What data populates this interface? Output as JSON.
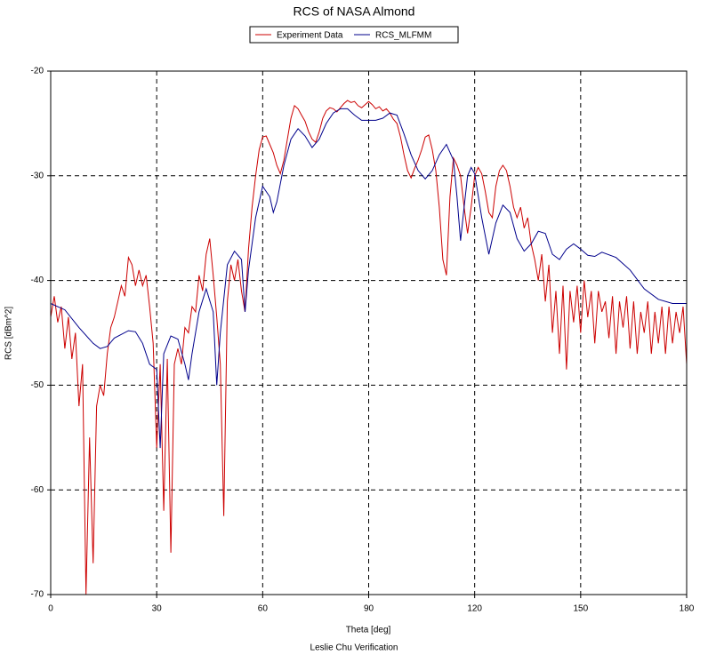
{
  "chart_data": {
    "type": "line",
    "title": "RCS of NASA Almond",
    "xlabel": "Theta [deg]",
    "ylabel": "RCS [dBm^2]",
    "footer": "Leslie Chu Verification",
    "xlim": [
      0,
      180
    ],
    "xticks": [
      0,
      30,
      60,
      90,
      120,
      150,
      180
    ],
    "ylim": [
      -70,
      -20
    ],
    "yticks": [
      -70,
      -60,
      -50,
      -40,
      -30,
      -20
    ],
    "grid": true,
    "legend": "top",
    "series": [
      {
        "name": "Experiment Data",
        "color": "#cc0000",
        "x": [
          0,
          1,
          2,
          3,
          4,
          5,
          6,
          7,
          8,
          9,
          10,
          11,
          12,
          13,
          14,
          15,
          16,
          17,
          18,
          19,
          20,
          21,
          22,
          23,
          24,
          25,
          26,
          27,
          28,
          29,
          30,
          31,
          32,
          33,
          34,
          35,
          36,
          37,
          38,
          39,
          40,
          41,
          42,
          43,
          44,
          45,
          46,
          47,
          48,
          49,
          50,
          51,
          52,
          53,
          54,
          55,
          56,
          57,
          58,
          59,
          60,
          61,
          62,
          63,
          64,
          65,
          66,
          67,
          68,
          69,
          70,
          71,
          72,
          73,
          74,
          75,
          76,
          77,
          78,
          79,
          80,
          81,
          82,
          83,
          84,
          85,
          86,
          87,
          88,
          89,
          90,
          91,
          92,
          93,
          94,
          95,
          96,
          97,
          98,
          99,
          100,
          101,
          102,
          103,
          104,
          105,
          106,
          107,
          108,
          109,
          110,
          111,
          112,
          113,
          114,
          115,
          116,
          117,
          118,
          119,
          120,
          121,
          122,
          123,
          124,
          125,
          126,
          127,
          128,
          129,
          130,
          131,
          132,
          133,
          134,
          135,
          136,
          137,
          138,
          139,
          140,
          141,
          142,
          143,
          144,
          145,
          146,
          147,
          148,
          149,
          150,
          151,
          152,
          153,
          154,
          155,
          156,
          157,
          158,
          159,
          160,
          161,
          162,
          163,
          164,
          165,
          166,
          167,
          168,
          169,
          170,
          171,
          172,
          173,
          174,
          175,
          176,
          177,
          178,
          179,
          180
        ],
        "values": [
          -43.5,
          -41.5,
          -44,
          -42.5,
          -46.5,
          -43.5,
          -47.5,
          -45,
          -52,
          -48,
          -70,
          -55,
          -67,
          -52,
          -50,
          -51,
          -47,
          -44.5,
          -43.5,
          -42,
          -40.5,
          -41.5,
          -37.8,
          -38.5,
          -40.5,
          -39,
          -40.5,
          -39.5,
          -42.5,
          -46,
          -56,
          -48,
          -62,
          -47.5,
          -66,
          -48,
          -46.5,
          -48,
          -44.5,
          -45,
          -42.5,
          -43,
          -39.5,
          -41,
          -37.5,
          -36,
          -39.5,
          -43.5,
          -48,
          -62.5,
          -42,
          -38.5,
          -40,
          -38,
          -41,
          -43,
          -37,
          -33,
          -30,
          -27.5,
          -26.3,
          -26.2,
          -27,
          -27.8,
          -29,
          -29.8,
          -28.5,
          -26.5,
          -24.5,
          -23.3,
          -23.6,
          -24.2,
          -24.8,
          -25.8,
          -26.5,
          -26.8,
          -25.8,
          -24.5,
          -23.8,
          -23.5,
          -23.6,
          -23.9,
          -23.5,
          -23.1,
          -22.8,
          -23,
          -22.9,
          -23.3,
          -23.5,
          -23.2,
          -22.9,
          -23.2,
          -23.6,
          -23.4,
          -23.8,
          -23.6,
          -24,
          -24.6,
          -25,
          -26.3,
          -28,
          -29.5,
          -30.2,
          -29.3,
          -28.5,
          -27.5,
          -26.3,
          -26.1,
          -27.5,
          -29.5,
          -33,
          -38,
          -39.5,
          -32,
          -28.3,
          -29,
          -30,
          -33,
          -35.5,
          -33,
          -30,
          -29.2,
          -29.8,
          -31.5,
          -33.5,
          -34,
          -31,
          -29.5,
          -29,
          -29.5,
          -31,
          -33,
          -34,
          -33,
          -35,
          -34,
          -36.5,
          -38,
          -40,
          -37.5,
          -42,
          -38.5,
          -45,
          -41,
          -47,
          -40.5,
          -48.5,
          -41,
          -44,
          -40.5,
          -45,
          -40,
          -43.5,
          -41,
          -46,
          -41,
          -43,
          -42,
          -45.5,
          -41.5,
          -47,
          -42,
          -44.5,
          -41.5,
          -46.5,
          -42,
          -47,
          -43,
          -45,
          -42,
          -47,
          -43,
          -46,
          -42.5,
          -47,
          -42.5,
          -46,
          -43,
          -45,
          -42.5,
          -48
        ]
      },
      {
        "name": "RCS_MLFMM",
        "color": "#00008b",
        "x": [
          0,
          4,
          8,
          12,
          14,
          16,
          18,
          22,
          24,
          26,
          28,
          30,
          31,
          32,
          34,
          36,
          38,
          39,
          40,
          42,
          44,
          46,
          47,
          48,
          50,
          52,
          54,
          55,
          56,
          58,
          60,
          62,
          63,
          64,
          66,
          68,
          70,
          72,
          74,
          76,
          78,
          80,
          82,
          84,
          86,
          88,
          92,
          94,
          96,
          98,
          100,
          102,
          104,
          106,
          108,
          110,
          112,
          114,
          115,
          116,
          117,
          118,
          119,
          120,
          122,
          124,
          126,
          128,
          130,
          132,
          134,
          136,
          138,
          140,
          142,
          144,
          146,
          148,
          150,
          152,
          154,
          156,
          160,
          164,
          168,
          172,
          176,
          180
        ],
        "values": [
          -42.2,
          -42.8,
          -44.5,
          -46,
          -46.5,
          -46.3,
          -45.5,
          -44.8,
          -44.9,
          -46,
          -48,
          -48.5,
          -56,
          -47,
          -45.3,
          -45.6,
          -48,
          -49.5,
          -47,
          -43,
          -40.8,
          -43,
          -50,
          -45,
          -38.5,
          -37.2,
          -38,
          -43,
          -39,
          -34,
          -31,
          -32,
          -33.5,
          -32.5,
          -29,
          -26.5,
          -25.5,
          -26.2,
          -27.3,
          -26.5,
          -25,
          -24,
          -23.6,
          -23.6,
          -24.2,
          -24.7,
          -24.7,
          -24.5,
          -24,
          -24.2,
          -26,
          -28,
          -29.5,
          -30.3,
          -29.5,
          -28,
          -27,
          -28.5,
          -32,
          -36.2,
          -33,
          -30,
          -29.2,
          -29.8,
          -34,
          -37.5,
          -34.5,
          -32.8,
          -33.5,
          -36,
          -37.2,
          -36.5,
          -35.3,
          -35.5,
          -37.5,
          -38,
          -37,
          -36.5,
          -37,
          -37.6,
          -37.7,
          -37.3,
          -37.8,
          -39,
          -40.8,
          -41.8,
          -42.2,
          -42.2
        ]
      }
    ]
  }
}
